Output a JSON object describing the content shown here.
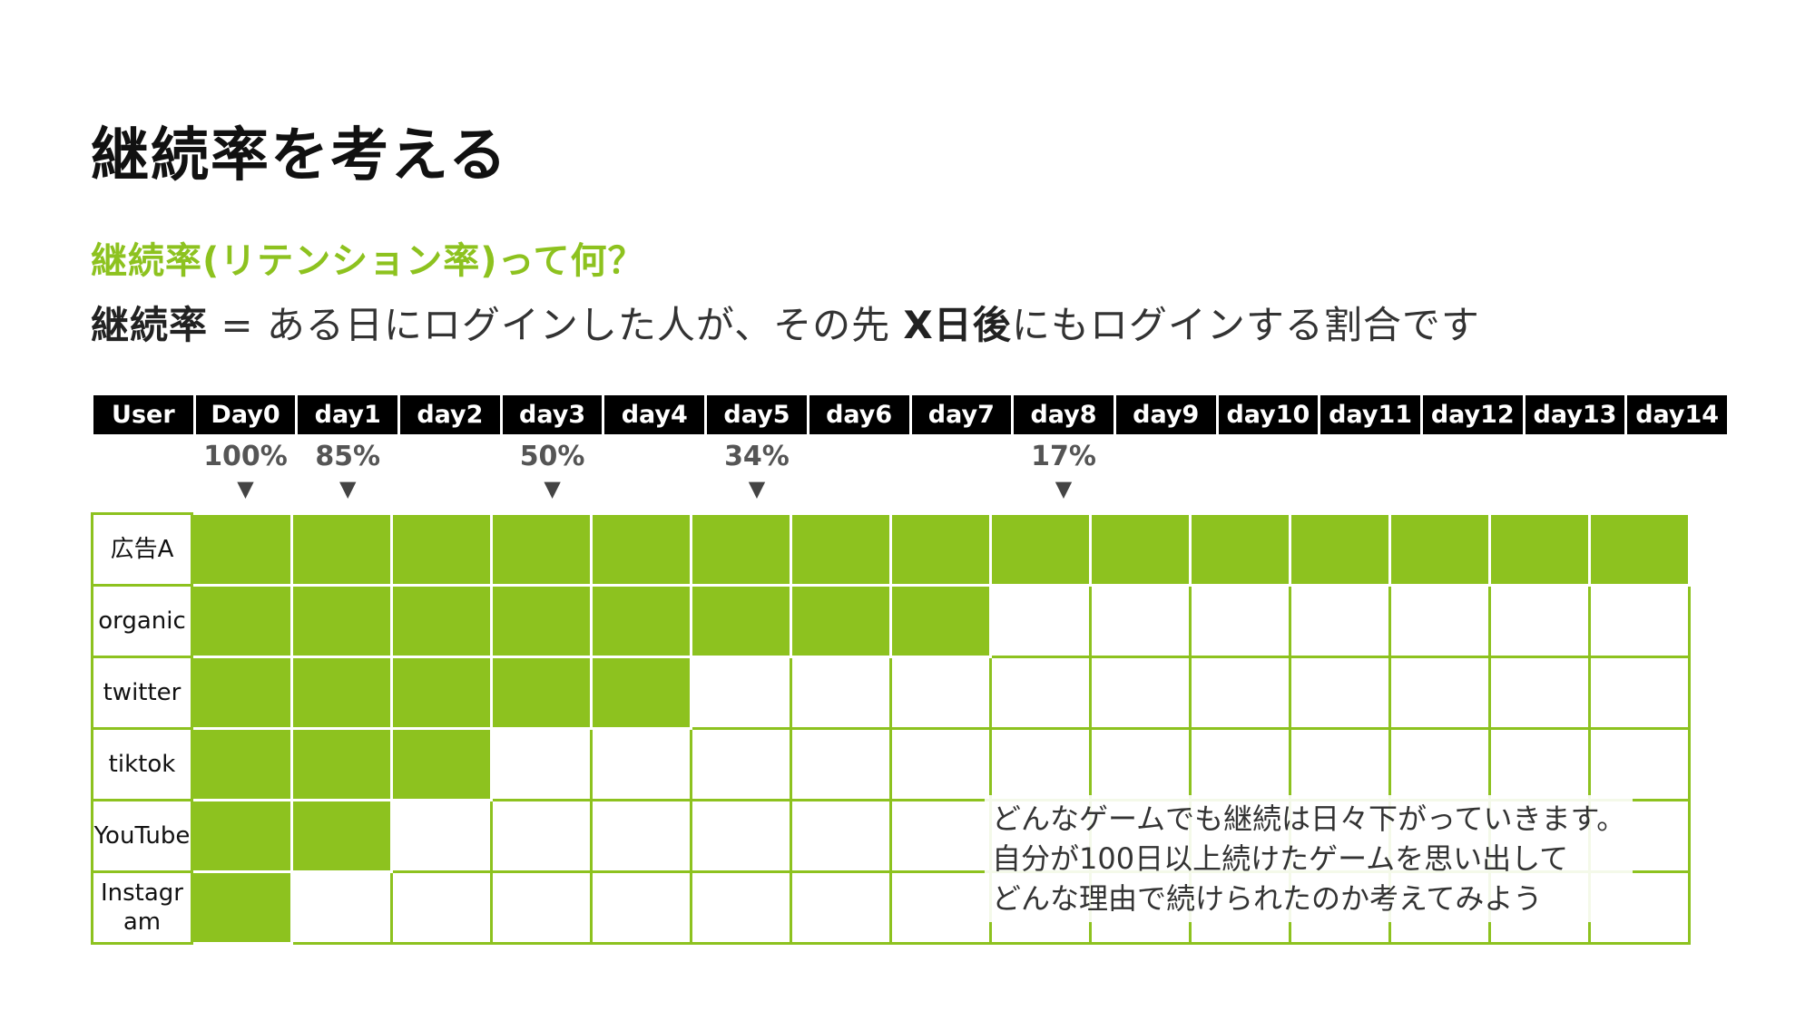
{
  "title": "継続率を考える",
  "subtitle": "継続率(リテンション率)って何？",
  "definition": {
    "term": "継続率",
    "eq": " = ある日にログインした人が、その先 ",
    "bold_days": "X日後",
    "rest": "にもログインする割合です"
  },
  "table": {
    "headers": [
      "User",
      "Day0",
      "day1",
      "day2",
      "day3",
      "day4",
      "day5",
      "day6",
      "day7",
      "day8",
      "day9",
      "day10",
      "day11",
      "day12",
      "day13",
      "day14"
    ],
    "markers": [
      {
        "label": "100%",
        "day_index": 0
      },
      {
        "label": "85%",
        "day_index": 1
      },
      {
        "label": "50%",
        "day_index": 3
      },
      {
        "label": "34%",
        "day_index": 5
      },
      {
        "label": "17%",
        "day_index": 8
      }
    ],
    "rows": [
      {
        "label": "広告A",
        "days_filled": 15
      },
      {
        "label": "organic",
        "days_filled": 8
      },
      {
        "label": "twitter",
        "days_filled": 5
      },
      {
        "label": "tiktok",
        "days_filled": 3
      },
      {
        "label": "YouTube",
        "days_filled": 2
      },
      {
        "label": "Instagr\nam",
        "days_filled": 1
      }
    ],
    "accent_color": "#8dc21f"
  },
  "note": [
    "どんなゲームでも継続は日々下がっていきます。",
    "自分が100日以上続けたゲームを思い出して",
    "どんな理由で続けられたのか考えてみよう"
  ]
}
